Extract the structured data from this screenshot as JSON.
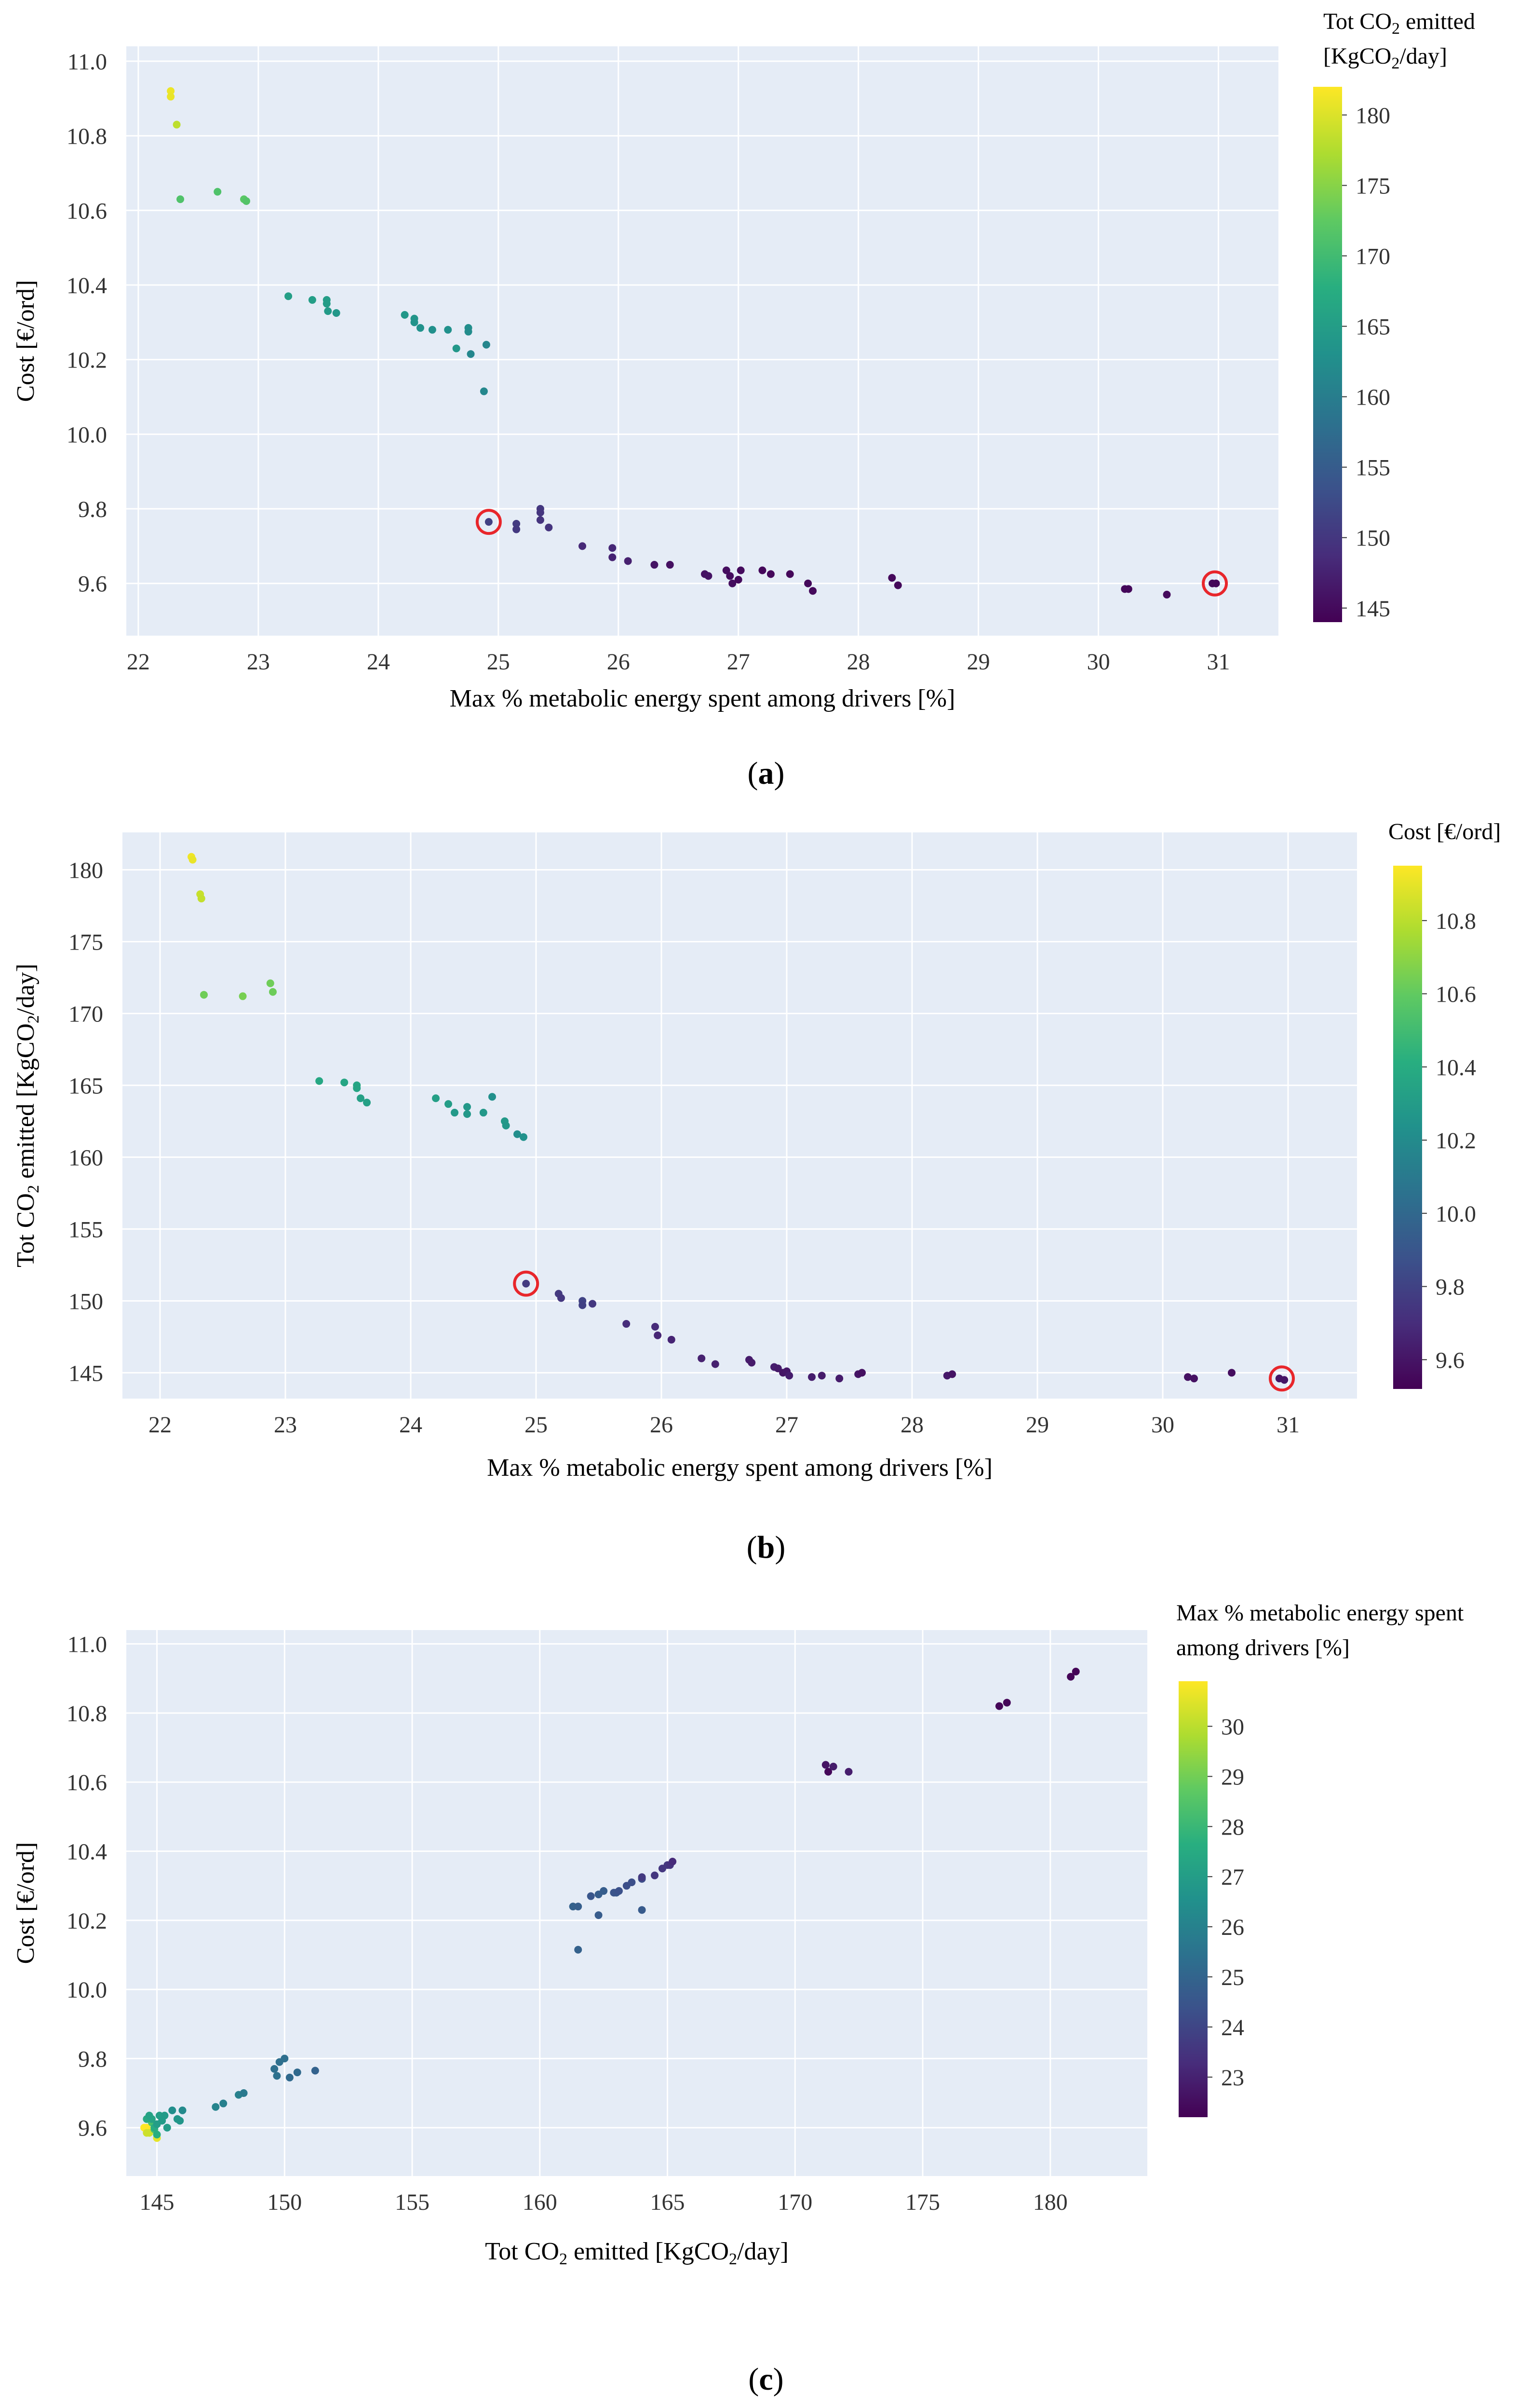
{
  "colors": {
    "plot_bg": "#e5ecf6",
    "grid": "#ffffff",
    "highlight_ring": "#e8262b",
    "colormap": [
      "#440154",
      "#472d7b",
      "#3b528b",
      "#2c728e",
      "#21918c",
      "#28ae80",
      "#5ec962",
      "#addc30",
      "#fde725"
    ]
  },
  "chart_data": [
    {
      "panel": "a",
      "caption": {
        "open": "(",
        "letter": "a",
        "close": ")"
      },
      "type": "scatter",
      "xlabel": "Max % metabolic energy spent among drivers [%]",
      "ylabel": "Cost [€/ord]",
      "xlim": [
        21.9,
        31.5
      ],
      "ylim": [
        9.46,
        11.04
      ],
      "xticks": [
        "22",
        "23",
        "24",
        "25",
        "26",
        "27",
        "28",
        "29",
        "30",
        "31"
      ],
      "yticks": [
        "9.6",
        "9.8",
        "10.0",
        "10.2",
        "10.4",
        "10.6",
        "10.8",
        "11.0"
      ],
      "colorbar": {
        "title_lines": [
          {
            "pre": "Tot CO",
            "sub": "2",
            "post": " emitted"
          },
          {
            "pre": "[KgCO",
            "sub": "2",
            "post": "/day]"
          }
        ],
        "range": [
          144,
          182
        ],
        "ticks": [
          "145",
          "150",
          "155",
          "160",
          "165",
          "170",
          "175",
          "180"
        ]
      },
      "highlighted": [
        [
          24.92,
          9.765
        ],
        [
          30.97,
          9.6
        ]
      ],
      "points": [
        [
          22.27,
          10.92,
          181
        ],
        [
          22.27,
          10.905,
          180.8
        ],
        [
          22.32,
          10.83,
          178.2
        ],
        [
          22.35,
          10.63,
          171.3
        ],
        [
          22.66,
          10.65,
          171.2
        ],
        [
          22.88,
          10.63,
          172.1
        ],
        [
          22.9,
          10.625,
          171.5
        ],
        [
          23.25,
          10.37,
          165.2
        ],
        [
          23.45,
          10.36,
          165.1
        ],
        [
          23.57,
          10.36,
          165.0
        ],
        [
          23.57,
          10.35,
          164.8
        ],
        [
          23.58,
          10.33,
          164.5
        ],
        [
          23.65,
          10.325,
          164.0
        ],
        [
          24.22,
          10.32,
          164.0
        ],
        [
          24.3,
          10.31,
          163.6
        ],
        [
          24.3,
          10.3,
          163.4
        ],
        [
          24.35,
          10.285,
          163.1
        ],
        [
          24.45,
          10.28,
          162.9
        ],
        [
          24.58,
          10.28,
          163.0
        ],
        [
          24.65,
          10.23,
          164.0
        ],
        [
          24.75,
          10.285,
          162.5
        ],
        [
          24.75,
          10.275,
          162.3
        ],
        [
          24.77,
          10.215,
          161.5
        ],
        [
          24.9,
          10.24,
          161.3
        ],
        [
          24.88,
          10.115,
          161.5
        ],
        [
          24.92,
          9.765,
          151.2
        ],
        [
          25.15,
          9.76,
          150.5
        ],
        [
          25.15,
          9.745,
          150.2
        ],
        [
          25.35,
          9.8,
          150.0
        ],
        [
          25.35,
          9.79,
          149.8
        ],
        [
          25.35,
          9.77,
          149.6
        ],
        [
          25.42,
          9.75,
          149.7
        ],
        [
          25.7,
          9.7,
          148.4
        ],
        [
          25.95,
          9.695,
          148.2
        ],
        [
          25.95,
          9.67,
          147.6
        ],
        [
          26.08,
          9.66,
          147.3
        ],
        [
          26.3,
          9.65,
          146.0
        ],
        [
          26.43,
          9.65,
          145.6
        ],
        [
          26.72,
          9.625,
          145.8
        ],
        [
          26.75,
          9.62,
          145.9
        ],
        [
          26.9,
          9.635,
          145.3
        ],
        [
          26.93,
          9.62,
          145.2
        ],
        [
          26.95,
          9.6,
          145.4
        ],
        [
          27.0,
          9.61,
          145.0
        ],
        [
          27.02,
          9.635,
          145.1
        ],
        [
          27.2,
          9.635,
          144.7
        ],
        [
          27.27,
          9.625,
          144.8
        ],
        [
          27.43,
          9.625,
          144.6
        ],
        [
          27.58,
          9.6,
          144.9
        ],
        [
          27.62,
          9.58,
          145.0
        ],
        [
          28.28,
          9.615,
          144.8
        ],
        [
          28.33,
          9.595,
          144.9
        ],
        [
          30.22,
          9.585,
          144.7
        ],
        [
          30.25,
          9.585,
          144.6
        ],
        [
          30.57,
          9.57,
          145.0
        ],
        [
          30.95,
          9.6,
          144.6
        ],
        [
          30.98,
          9.6,
          144.5
        ]
      ]
    },
    {
      "panel": "b",
      "caption": {
        "open": "(",
        "letter": "b",
        "close": ")"
      },
      "type": "scatter",
      "xlabel": "Max % metabolic energy spent among drivers [%]",
      "ylabel_parts": {
        "pre": "Tot CO",
        "sub": "2",
        "post": " emitted [KgCO",
        "sub2": "2",
        "post2": "/day]"
      },
      "xlim": [
        21.7,
        31.55
      ],
      "ylim": [
        143.2,
        182.6
      ],
      "xticks": [
        "22",
        "23",
        "24",
        "25",
        "26",
        "27",
        "28",
        "29",
        "30",
        "31"
      ],
      "yticks": [
        "145",
        "150",
        "155",
        "160",
        "165",
        "170",
        "175",
        "180"
      ],
      "colorbar": {
        "title_lines": [
          {
            "pre": "Cost [€/ord]",
            "sub": "",
            "post": ""
          }
        ],
        "range": [
          9.52,
          10.95
        ],
        "ticks": [
          "9.6",
          "9.8",
          "10.0",
          "10.2",
          "10.4",
          "10.6",
          "10.8"
        ]
      },
      "highlighted": [
        [
          24.92,
          151.2
        ],
        [
          30.95,
          144.6
        ]
      ],
      "points": [
        [
          22.25,
          180.9,
          10.92
        ],
        [
          22.26,
          180.7,
          10.905
        ],
        [
          22.32,
          178.3,
          10.83
        ],
        [
          22.33,
          178.0,
          10.82
        ],
        [
          22.35,
          171.3,
          10.63
        ],
        [
          22.66,
          171.2,
          10.65
        ],
        [
          22.88,
          172.1,
          10.63
        ],
        [
          22.9,
          171.5,
          10.625
        ],
        [
          23.27,
          165.3,
          10.37
        ],
        [
          23.47,
          165.2,
          10.36
        ],
        [
          23.57,
          165.0,
          10.36
        ],
        [
          23.57,
          164.8,
          10.35
        ],
        [
          23.6,
          164.1,
          10.33
        ],
        [
          23.65,
          163.8,
          10.325
        ],
        [
          24.2,
          164.1,
          10.32
        ],
        [
          24.3,
          163.7,
          10.31
        ],
        [
          24.35,
          163.1,
          10.285
        ],
        [
          24.45,
          163.5,
          10.28
        ],
        [
          24.45,
          163.0,
          10.28
        ],
        [
          24.58,
          163.1,
          10.28
        ],
        [
          24.65,
          164.2,
          10.23
        ],
        [
          24.75,
          162.5,
          10.285
        ],
        [
          24.76,
          162.2,
          10.275
        ],
        [
          24.85,
          161.6,
          10.215
        ],
        [
          24.9,
          161.4,
          10.24
        ],
        [
          24.92,
          151.2,
          9.765
        ],
        [
          25.18,
          150.5,
          9.76
        ],
        [
          25.2,
          150.2,
          9.745
        ],
        [
          25.37,
          150.0,
          9.8
        ],
        [
          25.37,
          149.7,
          9.79
        ],
        [
          25.45,
          149.8,
          9.75
        ],
        [
          25.72,
          148.4,
          9.7
        ],
        [
          25.95,
          148.2,
          9.695
        ],
        [
          25.97,
          147.6,
          9.67
        ],
        [
          26.08,
          147.3,
          9.66
        ],
        [
          26.32,
          146.0,
          9.65
        ],
        [
          26.43,
          145.6,
          9.65
        ],
        [
          26.7,
          145.9,
          9.625
        ],
        [
          26.72,
          145.7,
          9.62
        ],
        [
          26.9,
          145.4,
          9.635
        ],
        [
          26.93,
          145.3,
          9.62
        ],
        [
          26.97,
          145.0,
          9.6
        ],
        [
          27.0,
          145.1,
          9.61
        ],
        [
          27.02,
          144.8,
          9.635
        ],
        [
          27.2,
          144.7,
          9.635
        ],
        [
          27.28,
          144.8,
          9.625
        ],
        [
          27.42,
          144.6,
          9.625
        ],
        [
          27.57,
          144.9,
          9.6
        ],
        [
          27.6,
          145.0,
          9.58
        ],
        [
          28.28,
          144.8,
          9.615
        ],
        [
          28.32,
          144.9,
          9.595
        ],
        [
          30.2,
          144.7,
          9.585
        ],
        [
          30.25,
          144.6,
          9.585
        ],
        [
          30.55,
          145.0,
          9.57
        ],
        [
          30.93,
          144.6,
          9.6
        ],
        [
          30.97,
          144.5,
          9.6
        ]
      ]
    },
    {
      "panel": "c",
      "caption": {
        "open": "(",
        "letter": "c",
        "close": ")"
      },
      "type": "scatter",
      "xlabel_parts": {
        "pre": "Tot CO",
        "sub": "2",
        "post": " emitted [KgCO",
        "sub2": "2",
        "post2": "/day]"
      },
      "ylabel": "Cost [€/ord]",
      "xlim": [
        143.8,
        183.8
      ],
      "ylim": [
        9.46,
        11.04
      ],
      "xticks": [
        "145",
        "150",
        "155",
        "160",
        "165",
        "170",
        "175",
        "180"
      ],
      "yticks": [
        "9.6",
        "9.8",
        "10.0",
        "10.2",
        "10.4",
        "10.6",
        "10.8",
        "11.0"
      ],
      "colorbar": {
        "title_lines": [
          {
            "pre": "Max % metabolic energy spent",
            "sub": "",
            "post": ""
          },
          {
            "pre": "among drivers [%]",
            "sub": "",
            "post": ""
          }
        ],
        "range": [
          22.2,
          30.9
        ],
        "ticks": [
          "23",
          "24",
          "25",
          "26",
          "27",
          "28",
          "29",
          "30"
        ]
      },
      "highlighted": [],
      "points": [
        [
          144.6,
          9.6,
          30.95
        ],
        [
          144.5,
          9.6,
          30.98
        ],
        [
          144.7,
          9.585,
          30.22
        ],
        [
          144.6,
          9.585,
          30.25
        ],
        [
          145.0,
          9.57,
          30.57
        ],
        [
          144.8,
          9.615,
          28.28
        ],
        [
          144.9,
          9.595,
          28.33
        ],
        [
          145.0,
          9.58,
          27.62
        ],
        [
          144.9,
          9.6,
          27.58
        ],
        [
          144.6,
          9.625,
          27.43
        ],
        [
          144.8,
          9.625,
          27.27
        ],
        [
          144.7,
          9.635,
          27.2
        ],
        [
          145.1,
          9.635,
          27.02
        ],
        [
          145.0,
          9.61,
          27.0
        ],
        [
          145.4,
          9.6,
          26.95
        ],
        [
          145.2,
          9.62,
          26.93
        ],
        [
          145.3,
          9.635,
          26.9
        ],
        [
          145.9,
          9.62,
          26.75
        ],
        [
          145.8,
          9.625,
          26.72
        ],
        [
          145.6,
          9.65,
          26.43
        ],
        [
          146.0,
          9.65,
          26.3
        ],
        [
          147.3,
          9.66,
          26.08
        ],
        [
          147.6,
          9.67,
          25.95
        ],
        [
          148.2,
          9.695,
          25.95
        ],
        [
          148.4,
          9.7,
          25.7
        ],
        [
          149.7,
          9.75,
          25.42
        ],
        [
          149.6,
          9.77,
          25.35
        ],
        [
          149.8,
          9.79,
          25.35
        ],
        [
          150.0,
          9.8,
          25.35
        ],
        [
          150.2,
          9.745,
          25.15
        ],
        [
          150.5,
          9.76,
          25.15
        ],
        [
          151.2,
          9.765,
          24.92
        ],
        [
          161.5,
          10.115,
          24.88
        ],
        [
          161.3,
          10.24,
          24.9
        ],
        [
          161.5,
          10.24,
          24.77
        ],
        [
          162.3,
          10.275,
          24.75
        ],
        [
          162.5,
          10.285,
          24.75
        ],
        [
          164.0,
          10.23,
          24.65
        ],
        [
          163.0,
          10.28,
          24.58
        ],
        [
          162.9,
          10.28,
          24.45
        ],
        [
          163.1,
          10.285,
          24.35
        ],
        [
          163.4,
          10.3,
          24.3
        ],
        [
          163.6,
          10.31,
          24.3
        ],
        [
          164.0,
          10.32,
          24.22
        ],
        [
          162.3,
          10.215,
          24.7
        ],
        [
          162.0,
          10.27,
          24.5
        ],
        [
          164.0,
          10.325,
          23.65
        ],
        [
          164.5,
          10.33,
          23.58
        ],
        [
          164.8,
          10.35,
          23.57
        ],
        [
          165.0,
          10.36,
          23.57
        ],
        [
          165.1,
          10.36,
          23.45
        ],
        [
          165.2,
          10.37,
          23.25
        ],
        [
          171.3,
          10.63,
          22.35
        ],
        [
          171.5,
          10.645,
          22.88
        ],
        [
          172.1,
          10.63,
          22.9
        ],
        [
          171.2,
          10.65,
          22.66
        ],
        [
          178.0,
          10.82,
          22.32
        ],
        [
          178.3,
          10.83,
          22.32
        ],
        [
          180.8,
          10.905,
          22.27
        ],
        [
          181.0,
          10.92,
          22.27
        ]
      ]
    }
  ]
}
